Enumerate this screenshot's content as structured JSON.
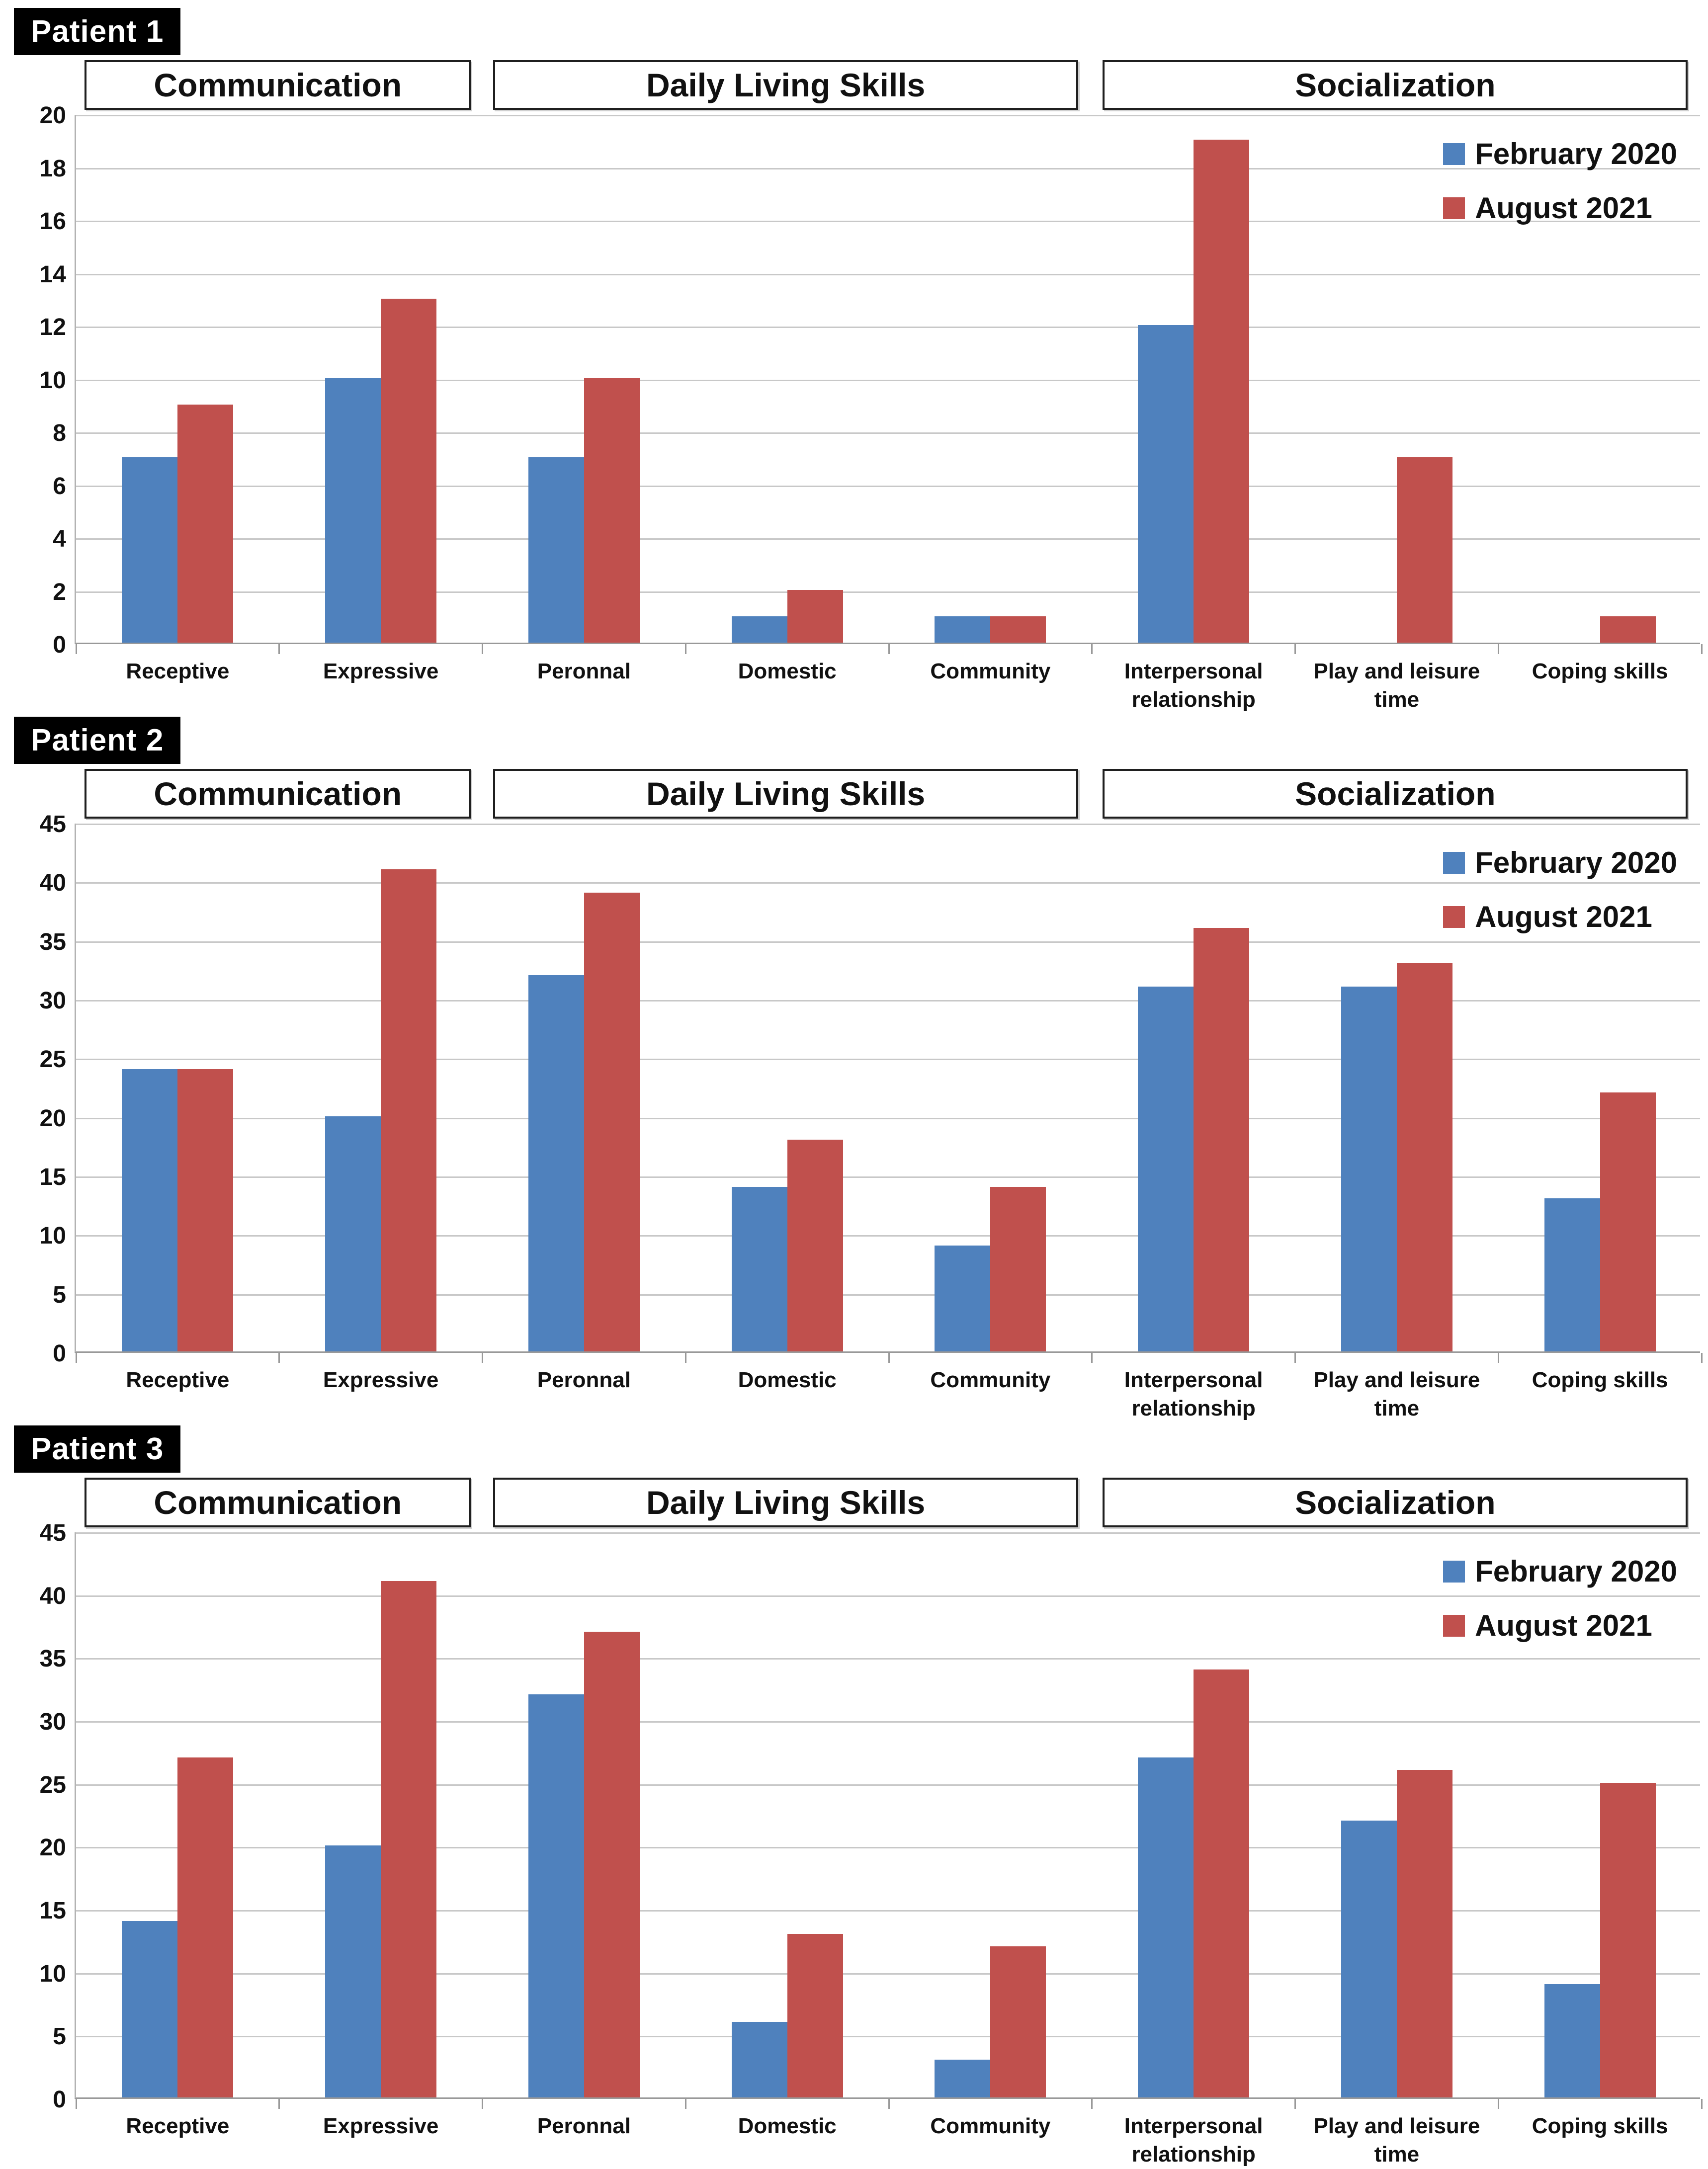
{
  "colors": {
    "series_blue": "#4F81BD",
    "series_red": "#C0504D",
    "gridline": "#C8C8C8",
    "axis": "#999999",
    "header_border": "#1f1f1f",
    "patient_label_bg": "#000000",
    "patient_label_text": "#ffffff"
  },
  "chart_data": [
    {
      "type": "bar",
      "title": "Patient 1",
      "domain_headers": [
        "Communication",
        "Daily Living Skills",
        "Socialization"
      ],
      "categories": [
        "Receptive",
        "Expressive",
        "Peronnal",
        "Domestic",
        "Community",
        "Interpersonal relationship",
        "Play and leisure time",
        "Coping skills"
      ],
      "categories_lines": [
        [
          "Receptive"
        ],
        [
          "Expressive"
        ],
        [
          "Peronnal"
        ],
        [
          "Domestic"
        ],
        [
          "Community"
        ],
        [
          "Interpersonal",
          "relationship"
        ],
        [
          "Play and leisure",
          "time"
        ],
        [
          "Coping skills"
        ]
      ],
      "series": [
        {
          "name": "February 2020",
          "color": "#4F81BD",
          "values": [
            7,
            10,
            7,
            1,
            1,
            12,
            0,
            0
          ]
        },
        {
          "name": "August 2021",
          "color": "#C0504D",
          "values": [
            9,
            13,
            10,
            2,
            1,
            19,
            7,
            1
          ]
        }
      ],
      "ylim": [
        0,
        20
      ],
      "ytick_step": 2,
      "grid": true,
      "legend_position": "top-right"
    },
    {
      "type": "bar",
      "title": "Patient 2",
      "domain_headers": [
        "Communication",
        "Daily Living Skills",
        "Socialization"
      ],
      "categories": [
        "Receptive",
        "Expressive",
        "Peronnal",
        "Domestic",
        "Community",
        "Interpersonal relationship",
        "Play and leisure time",
        "Coping skills"
      ],
      "categories_lines": [
        [
          "Receptive"
        ],
        [
          "Expressive"
        ],
        [
          "Peronnal"
        ],
        [
          "Domestic"
        ],
        [
          "Community"
        ],
        [
          "Interpersonal",
          "relationship"
        ],
        [
          "Play and leisure",
          "time"
        ],
        [
          "Coping skills"
        ]
      ],
      "series": [
        {
          "name": "February 2020",
          "color": "#4F81BD",
          "values": [
            24,
            20,
            32,
            14,
            9,
            31,
            31,
            13
          ]
        },
        {
          "name": "August 2021",
          "color": "#C0504D",
          "values": [
            24,
            41,
            39,
            18,
            14,
            36,
            33,
            22
          ]
        }
      ],
      "ylim": [
        0,
        45
      ],
      "ytick_step": 5,
      "grid": true,
      "legend_position": "top-right"
    },
    {
      "type": "bar",
      "title": "Patient 3",
      "domain_headers": [
        "Communication",
        "Daily Living Skills",
        "Socialization"
      ],
      "categories": [
        "Receptive",
        "Expressive",
        "Peronnal",
        "Domestic",
        "Community",
        "Interpersonal relationship",
        "Play and leisure time",
        "Coping skills"
      ],
      "categories_lines": [
        [
          "Receptive"
        ],
        [
          "Expressive"
        ],
        [
          "Peronnal"
        ],
        [
          "Domestic"
        ],
        [
          "Community"
        ],
        [
          "Interpersonal",
          "relationship"
        ],
        [
          "Play and leisure",
          "time"
        ],
        [
          "Coping skills"
        ]
      ],
      "series": [
        {
          "name": "February 2020",
          "color": "#4F81BD",
          "values": [
            14,
            20,
            32,
            6,
            3,
            27,
            22,
            9
          ]
        },
        {
          "name": "August 2021",
          "color": "#C0504D",
          "values": [
            27,
            41,
            37,
            13,
            12,
            34,
            26,
            25
          ]
        }
      ],
      "ylim": [
        0,
        45
      ],
      "ytick_step": 5,
      "grid": true,
      "legend_position": "top-right"
    }
  ]
}
